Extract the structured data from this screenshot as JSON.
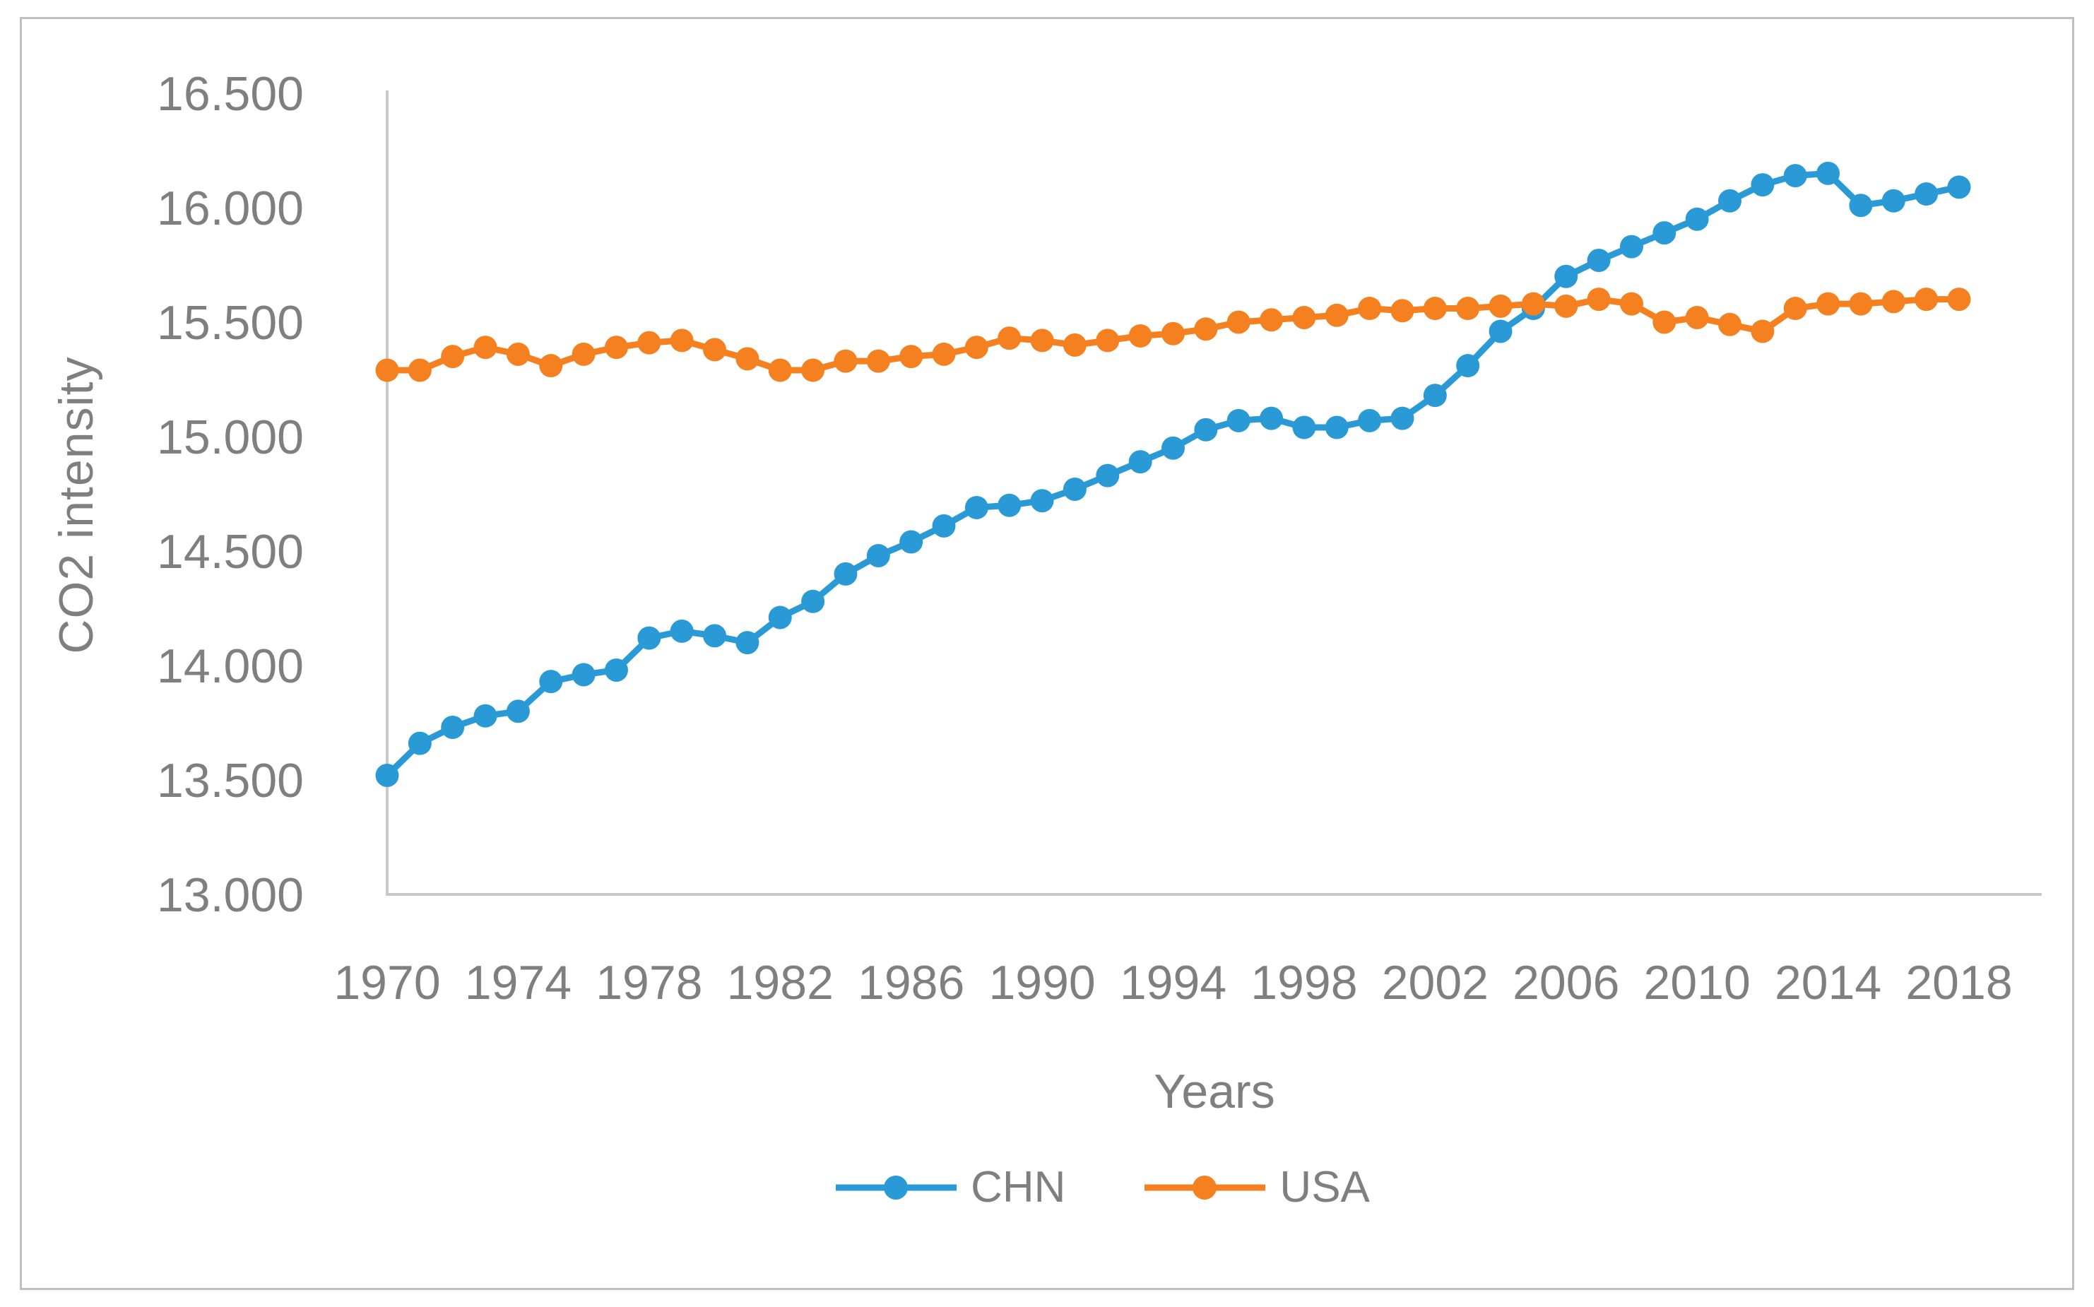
{
  "figure": {
    "background": "#ffffff",
    "border_color": "#bfbfbf",
    "axis_line_color": "#c9c9c9",
    "tick_text_color": "#7f7f7f"
  },
  "chart_data": {
    "type": "line",
    "title": "",
    "xlabel": "Years",
    "ylabel": "CO2 intensity",
    "grid": false,
    "legend_position": "bottom-center",
    "ylim": [
      13.0,
      16.5
    ],
    "y_tick_step": 0.5,
    "y_tick_labels": [
      "13.000",
      "13.500",
      "14.000",
      "14.500",
      "15.000",
      "15.500",
      "16.000",
      "16.500"
    ],
    "x_tick_labels": [
      "1970",
      "1974",
      "1978",
      "1982",
      "1986",
      "1990",
      "1994",
      "1998",
      "2002",
      "2006",
      "2010",
      "2014",
      "2018"
    ],
    "x": [
      1970,
      1971,
      1972,
      1973,
      1974,
      1975,
      1976,
      1977,
      1978,
      1979,
      1980,
      1981,
      1982,
      1983,
      1984,
      1985,
      1986,
      1987,
      1988,
      1989,
      1990,
      1991,
      1992,
      1993,
      1994,
      1995,
      1996,
      1997,
      1998,
      1999,
      2000,
      2001,
      2002,
      2003,
      2004,
      2005,
      2006,
      2007,
      2008,
      2009,
      2010,
      2011,
      2012,
      2013,
      2014,
      2015,
      2016,
      2017,
      2018
    ],
    "series": [
      {
        "name": "CHN",
        "color": "#2a9ad6",
        "values": [
          13.52,
          13.66,
          13.73,
          13.78,
          13.8,
          13.93,
          13.96,
          13.98,
          14.12,
          14.15,
          14.13,
          14.1,
          14.21,
          14.28,
          14.4,
          14.48,
          14.54,
          14.61,
          14.69,
          14.7,
          14.72,
          14.77,
          14.83,
          14.89,
          14.95,
          15.03,
          15.07,
          15.08,
          15.04,
          15.04,
          15.07,
          15.08,
          15.18,
          15.31,
          15.46,
          15.56,
          15.7,
          15.77,
          15.83,
          15.89,
          15.95,
          16.03,
          16.1,
          16.14,
          16.15,
          16.01,
          16.03,
          16.06,
          16.09
        ]
      },
      {
        "name": "USA",
        "color": "#f5801f",
        "values": [
          15.29,
          15.29,
          15.35,
          15.39,
          15.36,
          15.31,
          15.36,
          15.39,
          15.41,
          15.42,
          15.38,
          15.34,
          15.29,
          15.29,
          15.33,
          15.33,
          15.35,
          15.36,
          15.39,
          15.43,
          15.42,
          15.4,
          15.42,
          15.44,
          15.45,
          15.47,
          15.5,
          15.51,
          15.52,
          15.53,
          15.56,
          15.55,
          15.56,
          15.56,
          15.57,
          15.58,
          15.57,
          15.6,
          15.58,
          15.5,
          15.52,
          15.49,
          15.46,
          15.56,
          15.58,
          15.58,
          15.59,
          15.6,
          15.6
        ]
      }
    ]
  }
}
